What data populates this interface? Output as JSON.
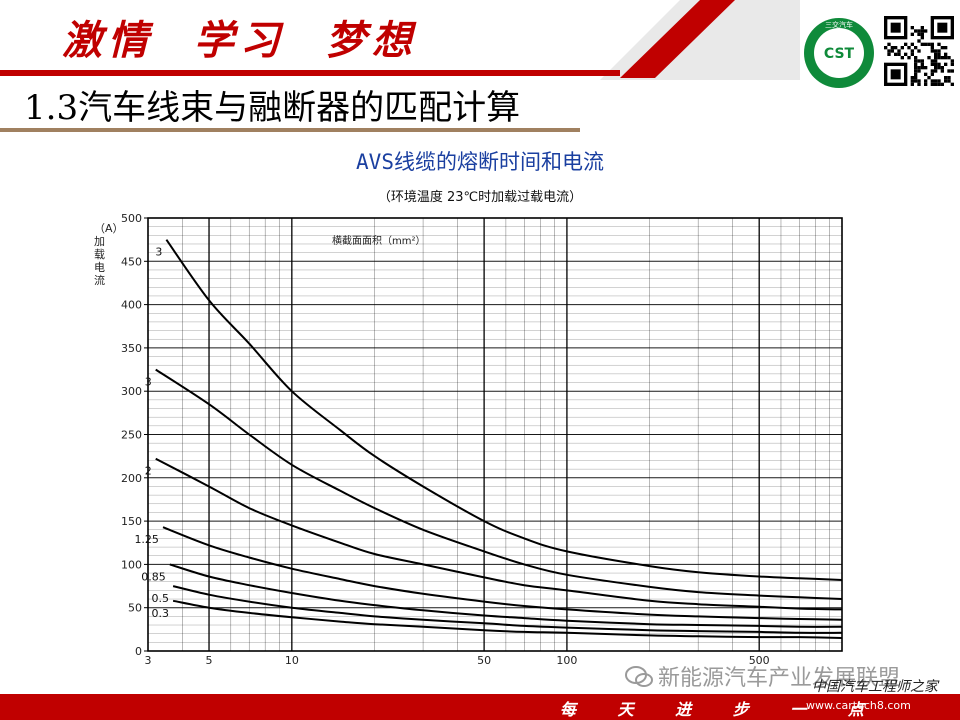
{
  "header": {
    "slogan": "激情  学习  梦想",
    "logo_text": "CST",
    "logo_ring_text": "三交汽车",
    "section_title": "1.3汽车线束与融断器的匹配计算"
  },
  "colors": {
    "brand_red": "#c00000",
    "title_blue": "#1a3fa0",
    "curve": "#000000",
    "grid": "#000000"
  },
  "chart_data": {
    "type": "line",
    "title": "AVS线缆的熔断时间和电流",
    "subtitle": "（环境温度 23℃时加载过载电流）",
    "ylabel": "加载电流",
    "ylabel_unit": "（A）",
    "legend_title": "横截面面积（mm²）",
    "xscale": "log",
    "xlim": [
      3,
      1000
    ],
    "ylim": [
      0,
      500
    ],
    "x_ticks": [
      3,
      5,
      10,
      50,
      100,
      500
    ],
    "y_ticks": [
      0,
      50,
      100,
      150,
      200,
      250,
      300,
      350,
      400,
      450,
      500
    ],
    "series": [
      {
        "name": "3",
        "x": [
          3.5,
          5,
          7,
          10,
          15,
          20,
          30,
          50,
          70,
          100,
          200,
          300,
          500,
          700,
          1000
        ],
        "y": [
          475,
          405,
          355,
          300,
          255,
          225,
          190,
          150,
          130,
          115,
          98,
          91,
          86,
          84,
          82
        ]
      },
      {
        "name": "3",
        "x": [
          3.2,
          5,
          7,
          10,
          15,
          20,
          30,
          50,
          70,
          100,
          200,
          300,
          500,
          700,
          1000
        ],
        "y": [
          325,
          285,
          250,
          215,
          185,
          165,
          140,
          115,
          100,
          88,
          74,
          68,
          64,
          62,
          60
        ]
      },
      {
        "name": "2",
        "x": [
          3.2,
          5,
          7,
          10,
          15,
          20,
          30,
          50,
          70,
          100,
          200,
          300,
          500,
          700,
          1000
        ],
        "y": [
          222,
          190,
          165,
          145,
          125,
          112,
          100,
          85,
          76,
          70,
          58,
          54,
          51,
          49,
          48
        ]
      },
      {
        "name": "1.25",
        "x": [
          3.4,
          5,
          7,
          10,
          15,
          20,
          30,
          50,
          70,
          100,
          200,
          300,
          500,
          700,
          1000
        ],
        "y": [
          143,
          122,
          108,
          95,
          83,
          75,
          66,
          57,
          52,
          48,
          42,
          40,
          38,
          37,
          36
        ]
      },
      {
        "name": "0.85",
        "x": [
          3.6,
          5,
          7,
          10,
          15,
          20,
          30,
          50,
          70,
          100,
          200,
          300,
          500,
          700,
          1000
        ],
        "y": [
          100,
          86,
          76,
          67,
          58,
          53,
          47,
          41,
          38,
          35,
          31,
          30,
          29,
          28,
          28
        ]
      },
      {
        "name": "0.5",
        "x": [
          3.7,
          5,
          7,
          10,
          15,
          20,
          30,
          50,
          70,
          100,
          200,
          300,
          500,
          700,
          1000
        ],
        "y": [
          75,
          65,
          57,
          50,
          44,
          40,
          36,
          32,
          29,
          27,
          24,
          23,
          22,
          21,
          21
        ]
      },
      {
        "name": "0.3",
        "x": [
          3.7,
          5,
          7,
          10,
          15,
          20,
          30,
          50,
          70,
          100,
          200,
          300,
          500,
          700,
          1000
        ],
        "y": [
          58,
          50,
          44,
          39,
          34,
          31,
          28,
          24,
          22,
          21,
          18,
          17,
          16,
          16,
          15
        ]
      }
    ],
    "grid": true
  },
  "watermark": "新能源汽车产业发展联盟",
  "site": {
    "name": "中国汽车工程师之家",
    "url": "www.cartech8.com"
  },
  "footer": {
    "slogan": "每 天 进 步 一 点"
  }
}
